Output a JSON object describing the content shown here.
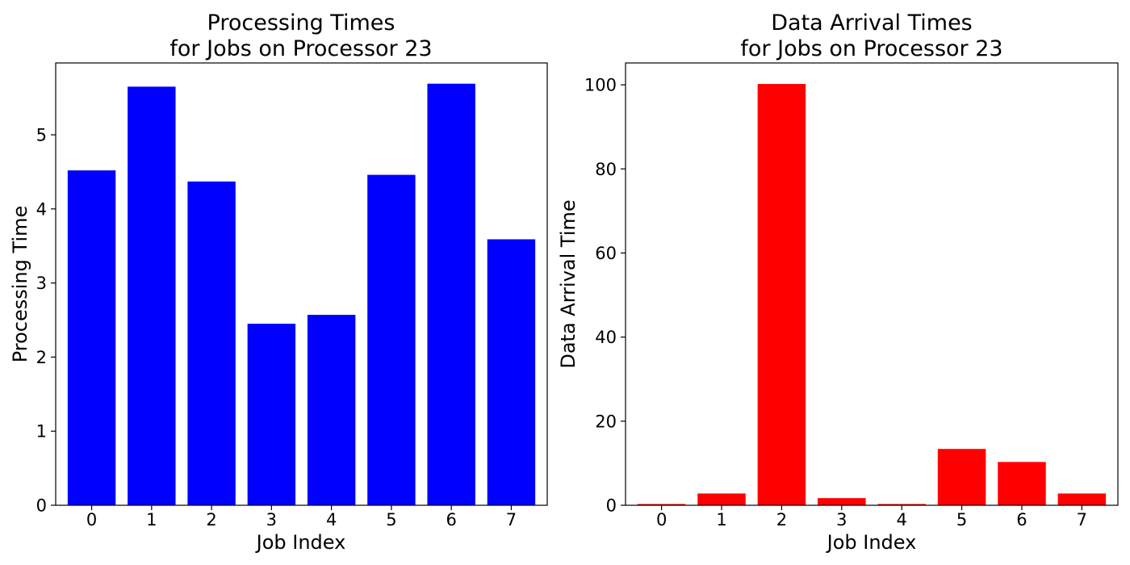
{
  "chart_data": [
    {
      "type": "bar",
      "title_line1": "Processing Times",
      "title_line2": "for Jobs on Processor 23",
      "xlabel": "Job Index",
      "ylabel": "Processing Time",
      "categories": [
        "0",
        "1",
        "2",
        "3",
        "4",
        "5",
        "6",
        "7"
      ],
      "values": [
        4.52,
        5.65,
        4.37,
        2.45,
        2.57,
        4.46,
        5.69,
        3.59
      ],
      "yticks": [
        0,
        1,
        2,
        3,
        4,
        5
      ],
      "ylim": [
        0,
        5.97
      ],
      "color": "#0000ff",
      "grid": false
    },
    {
      "type": "bar",
      "title_line1": "Data Arrival Times",
      "title_line2": "for Jobs on Processor 23",
      "xlabel": "Job Index",
      "ylabel": "Data Arrival Time",
      "categories": [
        "0",
        "1",
        "2",
        "3",
        "4",
        "5",
        "6",
        "7"
      ],
      "values": [
        0.3,
        2.8,
        100.2,
        1.7,
        0.3,
        13.4,
        10.3,
        2.8
      ],
      "yticks": [
        0,
        20,
        40,
        60,
        80,
        100
      ],
      "ylim": [
        0,
        105.2
      ],
      "color": "#ff0000",
      "grid": false
    }
  ]
}
